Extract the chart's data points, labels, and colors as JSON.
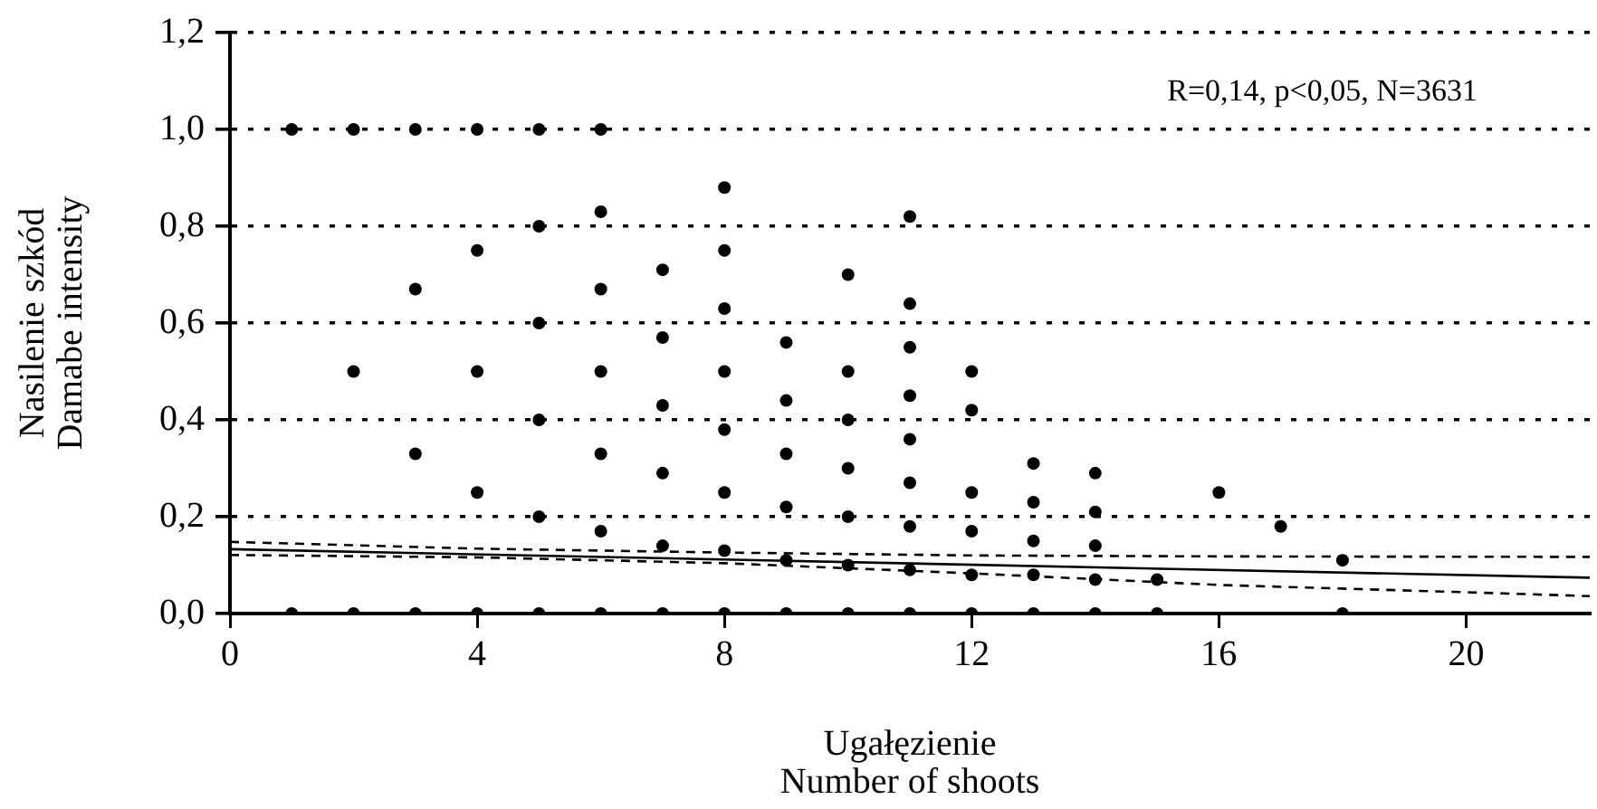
{
  "chart_data": {
    "type": "scatter",
    "xlabel": "Ugałęzienie\nNumber of shoots",
    "ylabel": "Nasilenie szkód\nDamabe intensity",
    "annotations": [
      "R=0,14, p<0,05, N=3631"
    ],
    "xlim": [
      0,
      22
    ],
    "xticks": [
      0,
      4,
      8,
      12,
      16,
      20
    ],
    "ylim": [
      0,
      1.2
    ],
    "yticks": [
      {
        "value": 0,
        "label": "0,0"
      },
      {
        "value": 0.2,
        "label": "0,2"
      },
      {
        "value": 0.4,
        "label": "0,4"
      },
      {
        "value": 0.6,
        "label": "0,6"
      },
      {
        "value": 0.8,
        "label": "0,8"
      },
      {
        "value": 1,
        "label": "1,0"
      },
      {
        "value": 1.2,
        "label": "1,2"
      }
    ],
    "grid": "y",
    "marker": "circle",
    "series": [
      {
        "color": "#000000",
        "x": [
          1,
          1,
          2,
          2,
          2,
          3,
          3,
          3,
          3,
          4,
          4,
          4,
          4,
          4,
          5,
          5,
          5,
          5,
          5,
          5,
          6,
          6,
          6,
          6,
          6,
          6,
          6,
          7,
          7,
          7,
          7,
          7,
          7,
          8,
          8,
          8,
          8,
          8,
          8,
          8,
          8,
          9,
          9,
          9,
          9,
          9,
          9,
          10,
          10,
          10,
          10,
          10,
          10,
          10,
          11,
          11,
          11,
          11,
          11,
          11,
          11,
          11,
          11,
          12,
          12,
          12,
          12,
          12,
          12,
          13,
          13,
          13,
          13,
          13,
          14,
          14,
          14,
          14,
          14,
          15,
          15,
          16,
          17,
          18,
          18
        ],
        "values": [
          1,
          0,
          1,
          0.5,
          0,
          1,
          0.67,
          0.33,
          0,
          1,
          0.75,
          0.5,
          0.25,
          0,
          1,
          0.8,
          0.6,
          0.4,
          0.2,
          0,
          1,
          0.83,
          0.67,
          0.5,
          0.33,
          0.17,
          0,
          0.71,
          0.57,
          0.43,
          0.29,
          0.14,
          0,
          0.88,
          0.75,
          0.63,
          0.5,
          0.38,
          0.25,
          0.13,
          0,
          0.56,
          0.44,
          0.33,
          0.22,
          0.11,
          0,
          0.7,
          0.5,
          0.4,
          0.3,
          0.2,
          0.1,
          0,
          0.82,
          0.64,
          0.55,
          0.45,
          0.36,
          0.27,
          0.18,
          0.09,
          0,
          0.5,
          0.42,
          0.25,
          0.17,
          0.08,
          0,
          0.31,
          0.23,
          0.15,
          0.08,
          0,
          0.29,
          0.21,
          0.14,
          0.07,
          0,
          0.07,
          0,
          0.25,
          0.18,
          0.11,
          0
        ]
      },
      {
        "type": "line",
        "color": "#000000",
        "marker": "none",
        "line_style": "solid",
        "x": [
          0,
          22
        ],
        "values": [
          0.133,
          0.074
        ]
      },
      {
        "type": "line",
        "color": "#000000",
        "marker": "none",
        "line_style": "dashed",
        "x": [
          0,
          4,
          8,
          12,
          16,
          22
        ],
        "values": [
          0.148,
          0.134,
          0.126,
          0.12,
          0.118,
          0.117
        ]
      },
      {
        "type": "line",
        "color": "#000000",
        "marker": "none",
        "line_style": "dashed",
        "x": [
          0,
          4,
          8,
          12,
          16,
          20,
          22
        ],
        "values": [
          0.121,
          0.116,
          0.104,
          0.083,
          0.059,
          0.044,
          0.036
        ]
      }
    ]
  }
}
